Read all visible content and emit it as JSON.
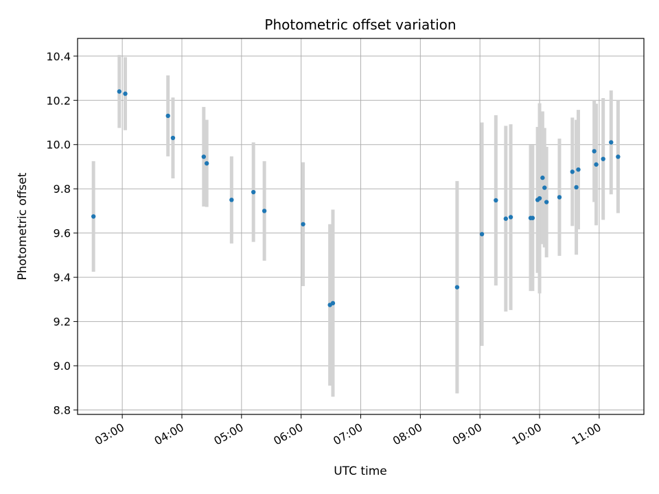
{
  "chart_data": {
    "type": "scatter",
    "title": "Photometric offset variation",
    "xlabel": "UTC time",
    "ylabel": "Photometric offset",
    "xlim": [
      "02:15",
      "11:45"
    ],
    "ylim": [
      8.78,
      10.48
    ],
    "x_ticks": [
      "03:00",
      "04:00",
      "05:00",
      "06:00",
      "07:00",
      "08:00",
      "09:00",
      "10:00",
      "11:00"
    ],
    "y_ticks": [
      "8.8",
      "9.0",
      "9.2",
      "9.4",
      "9.6",
      "9.8",
      "10.0",
      "10.2",
      "10.4"
    ],
    "grid": true,
    "point_color": "#1f77b4",
    "error_color": "#d3d3d3",
    "series": [
      {
        "points": [
          {
            "x": "02:31",
            "y": 9.675,
            "err": 0.25
          },
          {
            "x": "02:57",
            "y": 10.24,
            "err": 0.165
          },
          {
            "x": "03:03",
            "y": 10.23,
            "err": 0.165
          },
          {
            "x": "03:46",
            "y": 10.13,
            "err": 0.183
          },
          {
            "x": "03:51",
            "y": 10.03,
            "err": 0.183
          },
          {
            "x": "04:22",
            "y": 9.945,
            "err": 0.225
          },
          {
            "x": "04:25",
            "y": 9.915,
            "err": 0.197
          },
          {
            "x": "04:50",
            "y": 9.75,
            "err": 0.197
          },
          {
            "x": "05:12",
            "y": 9.785,
            "err": 0.225
          },
          {
            "x": "05:23",
            "y": 9.7,
            "err": 0.225
          },
          {
            "x": "06:02",
            "y": 9.64,
            "err": 0.28
          },
          {
            "x": "06:29",
            "y": 9.275,
            "err": 0.365
          },
          {
            "x": "06:32",
            "y": 9.283,
            "err": 0.423
          },
          {
            "x": "08:37",
            "y": 9.355,
            "err": 0.48
          },
          {
            "x": "09:02",
            "y": 9.595,
            "err": 0.505
          },
          {
            "x": "09:16",
            "y": 9.748,
            "err": 0.385
          },
          {
            "x": "09:26",
            "y": 9.665,
            "err": 0.42
          },
          {
            "x": "09:31",
            "y": 9.672,
            "err": 0.42
          },
          {
            "x": "09:51",
            "y": 9.668,
            "err": 0.33
          },
          {
            "x": "09:53",
            "y": 9.668,
            "err": 0.33
          },
          {
            "x": "09:58",
            "y": 9.75,
            "err": 0.33
          },
          {
            "x": "10:00",
            "y": 9.757,
            "err": 0.43
          },
          {
            "x": "10:03",
            "y": 9.85,
            "err": 0.3
          },
          {
            "x": "10:05",
            "y": 9.805,
            "err": 0.27
          },
          {
            "x": "10:07",
            "y": 9.74,
            "err": 0.25
          },
          {
            "x": "10:20",
            "y": 9.762,
            "err": 0.265
          },
          {
            "x": "10:33",
            "y": 9.877,
            "err": 0.245
          },
          {
            "x": "10:37",
            "y": 9.807,
            "err": 0.305
          },
          {
            "x": "10:39",
            "y": 9.887,
            "err": 0.27
          },
          {
            "x": "10:55",
            "y": 9.97,
            "err": 0.23
          },
          {
            "x": "10:57",
            "y": 9.91,
            "err": 0.275
          },
          {
            "x": "11:04",
            "y": 9.935,
            "err": 0.275
          },
          {
            "x": "11:12",
            "y": 10.01,
            "err": 0.235
          },
          {
            "x": "11:19",
            "y": 9.945,
            "err": 0.255
          }
        ]
      }
    ]
  }
}
